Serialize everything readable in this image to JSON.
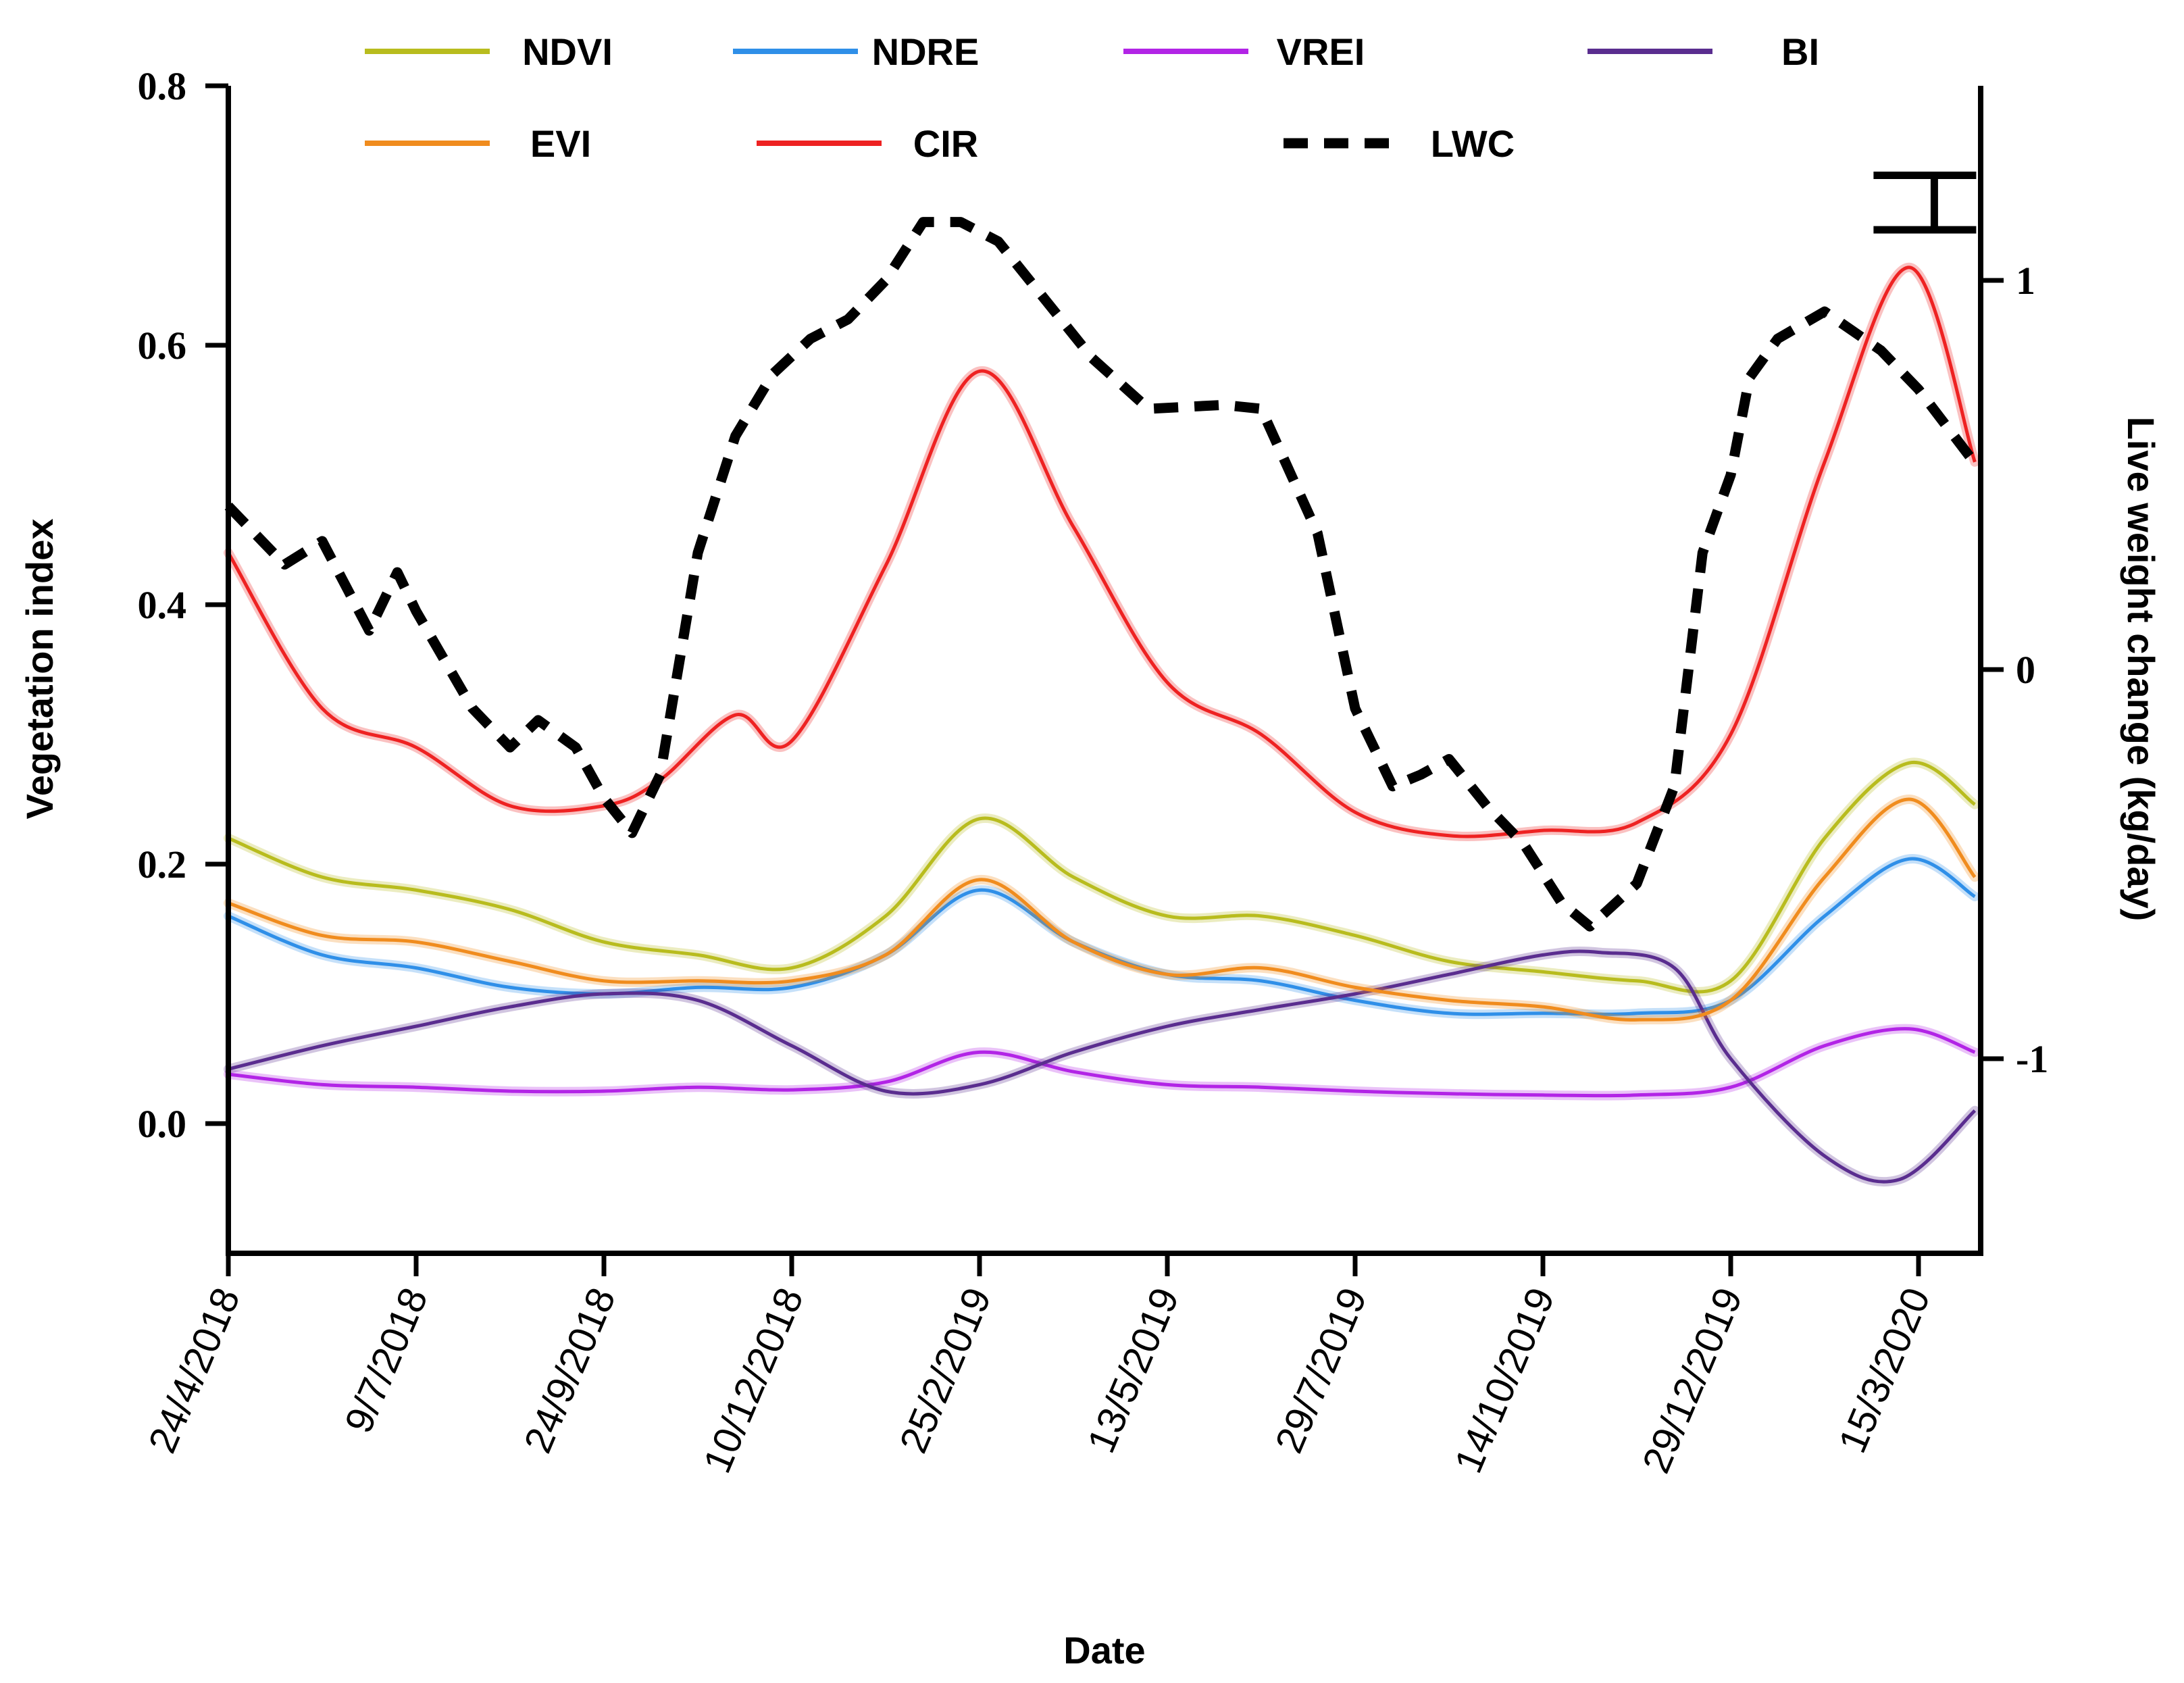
{
  "chart_data": {
    "type": "line",
    "title": "",
    "xlabel": "Date",
    "ylabel": "Vegetation index",
    "y2label": "Live weight change (kg/day)",
    "ylim": [
      -0.1,
      0.8
    ],
    "y2lim": [
      -1.5,
      1.5
    ],
    "grid": false,
    "legend_position": "top",
    "yticks": [
      "0.8",
      "0.6",
      "0.4",
      "0.2",
      "0.0"
    ],
    "y2ticks": [
      "1",
      "0",
      "-1"
    ],
    "x_tick_labels": [
      "24/4/2018",
      "9/7/2018",
      "24/9/2018",
      "10/12/2018",
      "25/2/2019",
      "13/5/2019",
      "29/7/2019",
      "14/10/2019",
      "29/12/2019",
      "15/3/2020"
    ],
    "x_domain": [
      0,
      9.3
    ],
    "series": [
      {
        "name": "NDVI",
        "axis": "left",
        "color": "#b8bc1e",
        "dash": "none",
        "points": [
          [
            0,
            0.22
          ],
          [
            0.5,
            0.19
          ],
          [
            1,
            0.18
          ],
          [
            1.5,
            0.165
          ],
          [
            2,
            0.14
          ],
          [
            2.5,
            0.13
          ],
          [
            3,
            0.12
          ],
          [
            3.5,
            0.16
          ],
          [
            4,
            0.235
          ],
          [
            4.5,
            0.19
          ],
          [
            5,
            0.16
          ],
          [
            5.5,
            0.16
          ],
          [
            6,
            0.145
          ],
          [
            6.5,
            0.125
          ],
          [
            7,
            0.117
          ],
          [
            7.5,
            0.11
          ],
          [
            8,
            0.11
          ],
          [
            8.5,
            0.22
          ],
          [
            8.95,
            0.278
          ],
          [
            9.3,
            0.246
          ]
        ]
      },
      {
        "name": "NDRE",
        "axis": "left",
        "color": "#2f8fe8",
        "dash": "none",
        "points": [
          [
            0,
            0.16
          ],
          [
            0.5,
            0.13
          ],
          [
            1,
            0.12
          ],
          [
            1.5,
            0.105
          ],
          [
            2,
            0.1
          ],
          [
            2.5,
            0.105
          ],
          [
            3,
            0.105
          ],
          [
            3.5,
            0.13
          ],
          [
            4,
            0.18
          ],
          [
            4.5,
            0.14
          ],
          [
            5,
            0.115
          ],
          [
            5.5,
            0.11
          ],
          [
            6,
            0.095
          ],
          [
            6.5,
            0.085
          ],
          [
            7,
            0.085
          ],
          [
            7.5,
            0.085
          ],
          [
            8,
            0.095
          ],
          [
            8.5,
            0.16
          ],
          [
            8.95,
            0.204
          ],
          [
            9.3,
            0.175
          ]
        ]
      },
      {
        "name": "VREI",
        "axis": "left",
        "color": "#b224e6",
        "dash": "none",
        "points": [
          [
            0,
            0.038
          ],
          [
            0.5,
            0.03
          ],
          [
            1,
            0.028
          ],
          [
            1.5,
            0.025
          ],
          [
            2,
            0.025
          ],
          [
            2.5,
            0.028
          ],
          [
            3,
            0.026
          ],
          [
            3.5,
            0.032
          ],
          [
            4,
            0.055
          ],
          [
            4.5,
            0.04
          ],
          [
            5,
            0.03
          ],
          [
            5.5,
            0.028
          ],
          [
            6,
            0.025
          ],
          [
            6.5,
            0.023
          ],
          [
            7,
            0.022
          ],
          [
            7.5,
            0.022
          ],
          [
            8,
            0.028
          ],
          [
            8.5,
            0.06
          ],
          [
            8.95,
            0.073
          ],
          [
            9.3,
            0.055
          ]
        ]
      },
      {
        "name": "BI",
        "axis": "left",
        "color": "#5a2d8f",
        "dash": "none",
        "points": [
          [
            0,
            0.042
          ],
          [
            0.5,
            0.06
          ],
          [
            1,
            0.075
          ],
          [
            1.5,
            0.09
          ],
          [
            2,
            0.1
          ],
          [
            2.5,
            0.095
          ],
          [
            3,
            0.06
          ],
          [
            3.5,
            0.025
          ],
          [
            4,
            0.03
          ],
          [
            4.5,
            0.055
          ],
          [
            5,
            0.075
          ],
          [
            5.5,
            0.088
          ],
          [
            6,
            0.1
          ],
          [
            6.5,
            0.115
          ],
          [
            7,
            0.13
          ],
          [
            7.3,
            0.132
          ],
          [
            7.7,
            0.12
          ],
          [
            8,
            0.05
          ],
          [
            8.5,
            -0.025
          ],
          [
            8.9,
            -0.043
          ],
          [
            9.3,
            0.01
          ]
        ]
      },
      {
        "name": "EVI",
        "axis": "left",
        "color": "#f08c1e",
        "dash": "none",
        "points": [
          [
            0,
            0.17
          ],
          [
            0.5,
            0.145
          ],
          [
            1,
            0.14
          ],
          [
            1.5,
            0.125
          ],
          [
            2,
            0.11
          ],
          [
            2.5,
            0.11
          ],
          [
            3,
            0.11
          ],
          [
            3.5,
            0.13
          ],
          [
            4,
            0.188
          ],
          [
            4.5,
            0.14
          ],
          [
            5,
            0.115
          ],
          [
            5.5,
            0.12
          ],
          [
            6,
            0.105
          ],
          [
            6.5,
            0.095
          ],
          [
            7,
            0.09
          ],
          [
            7.5,
            0.08
          ],
          [
            8,
            0.095
          ],
          [
            8.5,
            0.19
          ],
          [
            8.95,
            0.25
          ],
          [
            9.3,
            0.19
          ]
        ]
      },
      {
        "name": "CIR",
        "axis": "left",
        "color": "#ee2222",
        "dash": "none",
        "points": [
          [
            0,
            0.44
          ],
          [
            0.5,
            0.32
          ],
          [
            1,
            0.29
          ],
          [
            1.5,
            0.245
          ],
          [
            2,
            0.245
          ],
          [
            2.3,
            0.265
          ],
          [
            2.7,
            0.315
          ],
          [
            3,
            0.295
          ],
          [
            3.5,
            0.43
          ],
          [
            4,
            0.58
          ],
          [
            4.5,
            0.46
          ],
          [
            5,
            0.34
          ],
          [
            5.5,
            0.3
          ],
          [
            6,
            0.24
          ],
          [
            6.5,
            0.222
          ],
          [
            7,
            0.226
          ],
          [
            7.5,
            0.232
          ],
          [
            8,
            0.3
          ],
          [
            8.5,
            0.51
          ],
          [
            8.95,
            0.66
          ],
          [
            9.3,
            0.51
          ]
        ]
      },
      {
        "name": "LWC",
        "axis": "right",
        "color": "#000000",
        "dash": "dashed",
        "points": [
          [
            0,
            0.42
          ],
          [
            0.3,
            0.27
          ],
          [
            0.5,
            0.33
          ],
          [
            0.75,
            0.1
          ],
          [
            0.9,
            0.25
          ],
          [
            1,
            0.15
          ],
          [
            1.3,
            -0.1
          ],
          [
            1.5,
            -0.2
          ],
          [
            1.65,
            -0.13
          ],
          [
            1.85,
            -0.2
          ],
          [
            2,
            -0.33
          ],
          [
            2.15,
            -0.42
          ],
          [
            2.3,
            -0.27
          ],
          [
            2.5,
            0.3
          ],
          [
            2.7,
            0.6
          ],
          [
            2.9,
            0.76
          ],
          [
            3.1,
            0.85
          ],
          [
            3.3,
            0.9
          ],
          [
            3.5,
            1.0
          ],
          [
            3.7,
            1.15
          ],
          [
            3.9,
            1.15
          ],
          [
            4.1,
            1.1
          ],
          [
            4.35,
            0.95
          ],
          [
            4.6,
            0.8
          ],
          [
            4.9,
            0.67
          ],
          [
            5.3,
            0.68
          ],
          [
            5.5,
            0.67
          ],
          [
            5.8,
            0.35
          ],
          [
            6,
            -0.1
          ],
          [
            6.2,
            -0.3
          ],
          [
            6.35,
            -0.27
          ],
          [
            6.5,
            -0.23
          ],
          [
            6.7,
            -0.35
          ],
          [
            6.9,
            -0.45
          ],
          [
            7.1,
            -0.6
          ],
          [
            7.25,
            -0.66
          ],
          [
            7.5,
            -0.55
          ],
          [
            7.7,
            -0.3
          ],
          [
            7.85,
            0.3
          ],
          [
            8.0,
            0.5
          ],
          [
            8.1,
            0.75
          ],
          [
            8.25,
            0.85
          ],
          [
            8.5,
            0.92
          ],
          [
            8.8,
            0.82
          ],
          [
            9.0,
            0.72
          ],
          [
            9.3,
            0.53
          ]
        ]
      }
    ],
    "lwc_error_bar": {
      "x": 9.3,
      "y_low": 1.13,
      "y_high": 1.27
    }
  }
}
